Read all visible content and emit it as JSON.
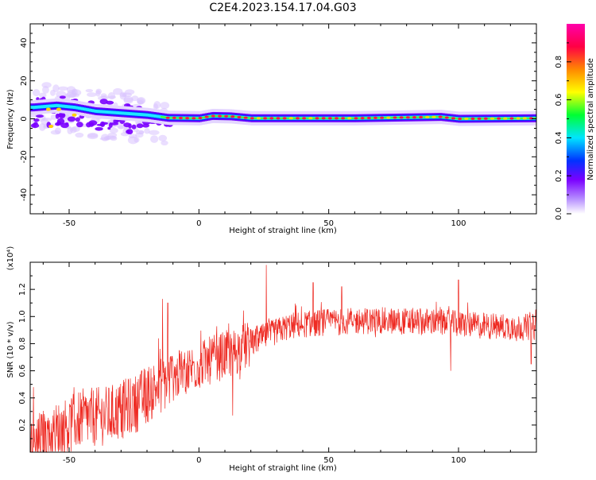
{
  "title": "C2E4.2023.154.17.04.G03",
  "chart_data": [
    {
      "type": "heatmap",
      "xlabel": "Height of straight line (km)",
      "ylabel": "Frequency (Hz)",
      "xlim": [
        -65,
        130
      ],
      "ylim": [
        -50,
        50
      ],
      "x_ticks": [
        -50,
        0,
        50,
        100
      ],
      "y_ticks": [
        -40,
        -20,
        0,
        20,
        40
      ],
      "grid": false,
      "colorbar": {
        "label": "Normalized spectral amplitude",
        "range": [
          0,
          1
        ],
        "ticks": [
          "0.0",
          "0.2",
          "0.4",
          "0.6",
          "0.8"
        ],
        "colormap": [
          "#ffffff",
          "#7a00ff",
          "#0033ff",
          "#00e5ff",
          "#00ff33",
          "#ffff00",
          "#ff8800",
          "#ff0044",
          "#ff00aa"
        ]
      },
      "ridge": [
        {
          "x": -64,
          "f": 6
        },
        {
          "x": -55,
          "f": 7
        },
        {
          "x": -48,
          "f": 6
        },
        {
          "x": -40,
          "f": 4
        },
        {
          "x": -30,
          "f": 3
        },
        {
          "x": -20,
          "f": 2
        },
        {
          "x": -12,
          "f": 0.5
        },
        {
          "x": 0,
          "f": 0.3
        },
        {
          "x": 5,
          "f": 1.5
        },
        {
          "x": 12,
          "f": 1.3
        },
        {
          "x": 20,
          "f": 0.3
        },
        {
          "x": 60,
          "f": 0.3
        },
        {
          "x": 93,
          "f": 1
        },
        {
          "x": 100,
          "f": 0
        },
        {
          "x": 130,
          "f": 0.3
        }
      ]
    },
    {
      "type": "line",
      "xlabel": "Height of straight line (km)",
      "ylabel": "SNR (10 * v/v)",
      "multiplier": "(x10⁴)",
      "xlim": [
        -65,
        130
      ],
      "ylim": [
        0,
        1.4
      ],
      "x_ticks": [
        -50,
        0,
        50,
        100
      ],
      "y_ticks": [
        "0.2",
        "0.4",
        "0.6",
        "0.8",
        "1.0",
        "1.2"
      ],
      "grid": false,
      "color": "#ee2a22",
      "trend": [
        {
          "x": -65,
          "y": 0.05
        },
        {
          "x": -55,
          "y": 0.15
        },
        {
          "x": -45,
          "y": 0.25
        },
        {
          "x": -35,
          "y": 0.27
        },
        {
          "x": -25,
          "y": 0.35
        },
        {
          "x": -15,
          "y": 0.5
        },
        {
          "x": -5,
          "y": 0.6
        },
        {
          "x": 5,
          "y": 0.68
        },
        {
          "x": 15,
          "y": 0.75
        },
        {
          "x": 25,
          "y": 0.85
        },
        {
          "x": 35,
          "y": 0.93
        },
        {
          "x": 50,
          "y": 0.96
        },
        {
          "x": 70,
          "y": 0.97
        },
        {
          "x": 90,
          "y": 0.96
        },
        {
          "x": 110,
          "y": 0.93
        },
        {
          "x": 130,
          "y": 0.92
        }
      ],
      "spikes": [
        {
          "x": -14,
          "y": 1.13
        },
        {
          "x": -12,
          "y": 1.1
        },
        {
          "x": 13,
          "y": 0.27
        },
        {
          "x": 26,
          "y": 1.38
        },
        {
          "x": 44,
          "y": 1.25
        },
        {
          "x": 55,
          "y": 1.22
        },
        {
          "x": 97,
          "y": 0.6
        },
        {
          "x": 100,
          "y": 1.27
        },
        {
          "x": 128,
          "y": 0.65
        }
      ]
    }
  ]
}
